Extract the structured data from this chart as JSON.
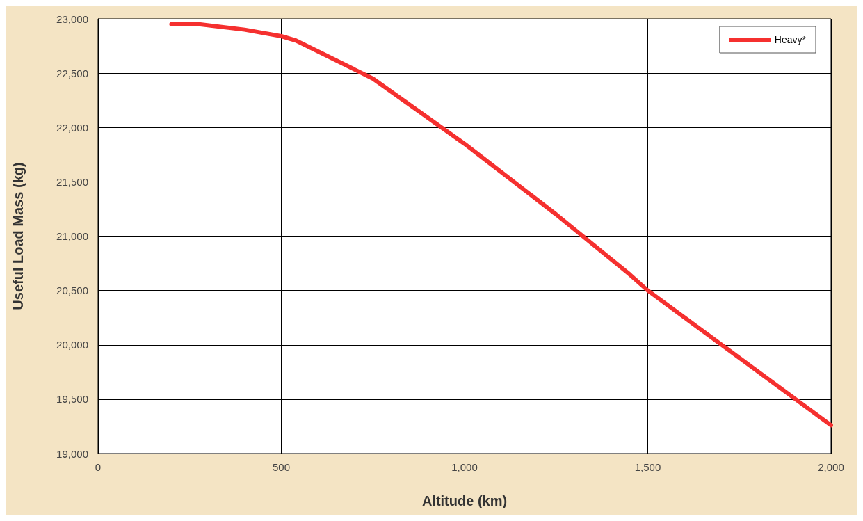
{
  "chart_data": {
    "type": "line",
    "xlabel": "Altitude (km)",
    "ylabel": "Useful Load Mass (kg)",
    "series": [
      {
        "name": "Heavy*",
        "color": "#f5302f",
        "x": [
          200,
          275,
          400,
          500,
          540,
          750,
          1000,
          1050,
          1250,
          1450,
          1500,
          2000
        ],
        "values": [
          22950,
          22950,
          22900,
          22840,
          22800,
          22450,
          21850,
          21720,
          21200,
          20650,
          20500,
          19260
        ]
      }
    ],
    "xlim": [
      0,
      2000
    ],
    "xticks": [
      {
        "value": 0,
        "label": "0"
      },
      {
        "value": 500,
        "label": "500"
      },
      {
        "value": 1000,
        "label": "1,000"
      },
      {
        "value": 1500,
        "label": "1,500"
      },
      {
        "value": 2000,
        "label": "2,000"
      }
    ],
    "ylim": [
      19000,
      23000
    ],
    "yticks": [
      {
        "value": 19000,
        "label": "19,000"
      },
      {
        "value": 19500,
        "label": "19,500"
      },
      {
        "value": 20000,
        "label": "20,000"
      },
      {
        "value": 20500,
        "label": "20,500"
      },
      {
        "value": 21000,
        "label": "21,000"
      },
      {
        "value": 21500,
        "label": "21,500"
      },
      {
        "value": 22000,
        "label": "22,000"
      },
      {
        "value": 22500,
        "label": "22,500"
      },
      {
        "value": 23000,
        "label": "23,000"
      }
    ],
    "grid": true,
    "legend": "top right",
    "marker": "none",
    "line_style": "solid"
  }
}
